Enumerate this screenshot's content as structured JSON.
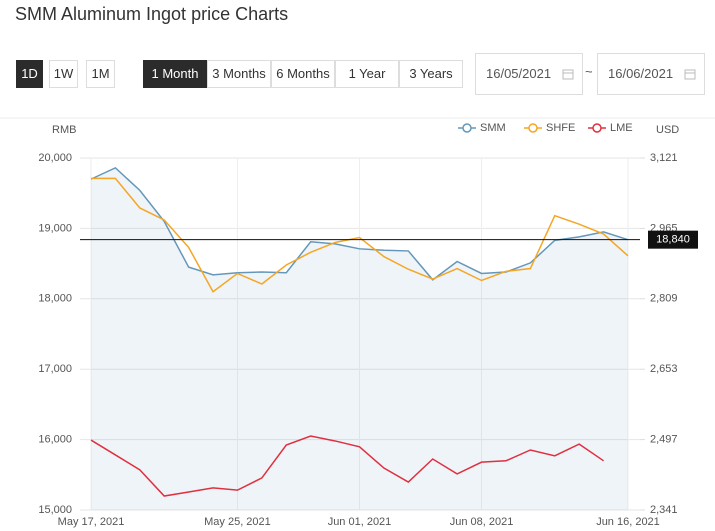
{
  "header": {
    "title": "SMM Aluminum Ingot price Charts",
    "ranges_short": [
      "1D",
      "1W",
      "1M"
    ],
    "active_short": 0,
    "ranges": [
      "1 Month",
      "3 Months",
      "6 Months",
      "1 Year",
      "3 Years"
    ],
    "active_range": 0,
    "date_from": "16/05/2021",
    "date_sep": "~",
    "date_to": "16/06/2021"
  },
  "chart_data": {
    "type": "line",
    "ylabel": "RMB",
    "y2label": "USD",
    "categories": [
      "May 17, 2021",
      null,
      null,
      null,
      null,
      null,
      "May 25, 2021",
      null,
      null,
      null,
      null,
      "Jun 01, 2021",
      null,
      null,
      null,
      null,
      "Jun 08, 2021",
      null,
      null,
      null,
      null,
      null,
      "Jun 16, 2021"
    ],
    "series": [
      {
        "name": "SMM",
        "color": "#6497b9",
        "area": true,
        "values": [
          19700,
          19860,
          19540,
          19100,
          18450,
          18340,
          18370,
          18380,
          18370,
          18810,
          18780,
          18710,
          18690,
          18680,
          18270,
          18530,
          18360,
          18380,
          18510,
          18830,
          18880,
          18950,
          18840
        ]
      },
      {
        "name": "SHFE",
        "color": "#f5a623",
        "values": [
          19710,
          19710,
          19290,
          19120,
          18730,
          18100,
          18360,
          18210,
          18480,
          18660,
          18800,
          18870,
          18600,
          18420,
          18280,
          18430,
          18260,
          18390,
          18430,
          19180,
          19060,
          18920,
          18610
        ]
      },
      {
        "name": "LME",
        "color": "#e0303f",
        "axis": "y2",
        "values": [
          2496,
          2463,
          2430,
          2372,
          2381,
          2390,
          2385,
          2412,
          2485,
          2505,
          2494,
          2481,
          2434,
          2403,
          2454,
          2421,
          2447,
          2450,
          2474,
          2461,
          2487,
          2450,
          null
        ]
      }
    ],
    "ylim": [
      15000,
      20000
    ],
    "yticks": [
      {
        "value": 15000,
        "label": "15,000"
      },
      {
        "value": 16000,
        "label": "16,000"
      },
      {
        "value": 17000,
        "label": "17,000"
      },
      {
        "value": 18000,
        "label": "18,000"
      },
      {
        "value": 19000,
        "label": "19,000"
      },
      {
        "value": 20000,
        "label": "20,000"
      }
    ],
    "y2lim": [
      2341,
      3121
    ],
    "y2ticks": [
      {
        "value": 2341,
        "label": "2,341"
      },
      {
        "value": 2497,
        "label": "2,497"
      },
      {
        "value": 2653,
        "label": "2,653"
      },
      {
        "value": 2809,
        "label": "2,809"
      },
      {
        "value": 2965,
        "label": "2,965"
      },
      {
        "value": 3121,
        "label": "3,121"
      }
    ],
    "reference_line": {
      "value": 18840,
      "label": "18,840"
    },
    "grid": true
  }
}
